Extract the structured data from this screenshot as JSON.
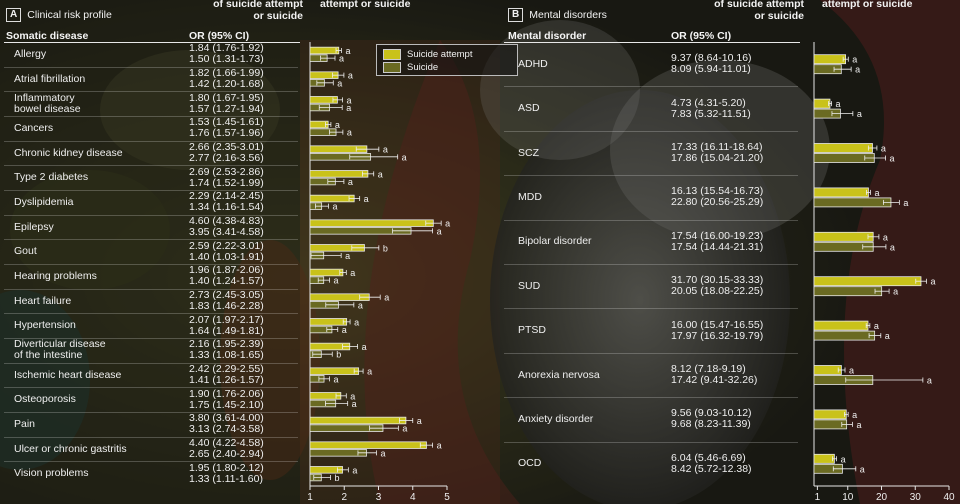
{
  "panelA": {
    "letter": "A",
    "title": "Clinical risk profile",
    "col_label": "Somatic disease",
    "col_or": "OR (95% CI)",
    "top_or_header": "of suicide attempt\nor suicide",
    "top_plot_header": "attempt or suicide"
  },
  "panelB": {
    "letter": "B",
    "title": "Mental disorders",
    "col_label": "Mental disorder",
    "col_or": "OR (95% CI)",
    "top_or_header": "of suicide attempt\nor suicide",
    "top_plot_header": "attempt or suicide"
  },
  "legend": {
    "attempt": "Suicide attempt",
    "suicide": "Suicide"
  },
  "colors": {
    "attempt": "#c9c21a",
    "suicide": "#6a6a22",
    "bar_edge": "#e8e8e8"
  },
  "chart_data": [
    {
      "type": "bar",
      "orientation": "horizontal",
      "categories": [
        "Allergy",
        "Atrial fibrillation",
        "Inflammatory\nbowel disease",
        "Cancers",
        "Chronic kidney disease",
        "Type 2 diabetes",
        "Dyslipidemia",
        "Epilepsy",
        "Gout",
        "Hearing problems",
        "Heart failure",
        "Hypertension",
        "Diverticular disease\nof the intestine",
        "Ischemic heart disease",
        "Osteoporosis",
        "Pain",
        "Ulcer or chronic gastritis",
        "Vision problems"
      ],
      "xlim": [
        1,
        5
      ],
      "xticks": [
        1,
        2,
        3,
        4,
        5
      ],
      "series": [
        {
          "name": "Suicide attempt",
          "values": [
            1.84,
            1.82,
            1.8,
            1.53,
            2.66,
            2.69,
            2.29,
            4.6,
            2.59,
            1.96,
            2.73,
            2.07,
            2.16,
            2.42,
            1.9,
            3.8,
            4.4,
            1.95
          ],
          "lo": [
            1.76,
            1.66,
            1.67,
            1.45,
            2.35,
            2.53,
            2.14,
            4.38,
            2.22,
            1.87,
            2.45,
            1.97,
            1.95,
            2.29,
            1.76,
            3.61,
            4.22,
            1.8
          ],
          "hi": [
            1.92,
            1.99,
            1.95,
            1.61,
            3.01,
            2.86,
            2.45,
            4.83,
            3.01,
            2.06,
            3.05,
            2.17,
            2.39,
            2.55,
            2.06,
            4.0,
            4.58,
            2.12
          ],
          "ci_text": [
            "1.84 (1.76-1.92)",
            "1.82 (1.66-1.99)",
            "1.80 (1.67-1.95)",
            "1.53 (1.45-1.61)",
            "2.66 (2.35-3.01)",
            "2.69 (2.53-2.86)",
            "2.29 (2.14-2.45)",
            "4.60 (4.38-4.83)",
            "2.59 (2.22-3.01)",
            "1.96 (1.87-2.06)",
            "2.73 (2.45-3.05)",
            "2.07 (1.97-2.17)",
            "2.16 (1.95-2.39)",
            "2.42 (2.29-2.55)",
            "1.90 (1.76-2.06)",
            "3.80 (3.61-4.00)",
            "4.40 (4.22-4.58)",
            "1.95 (1.80-2.12)"
          ],
          "sig": [
            "a",
            "a",
            "a",
            "a",
            "a",
            "a",
            "a",
            "a",
            "b",
            "a",
            "a",
            "a",
            "a",
            "a",
            "a",
            "a",
            "a",
            "a"
          ]
        },
        {
          "name": "Suicide",
          "values": [
            1.5,
            1.42,
            1.57,
            1.76,
            2.77,
            1.74,
            1.34,
            3.95,
            1.4,
            1.4,
            1.83,
            1.64,
            1.33,
            1.41,
            1.75,
            3.13,
            2.65,
            1.33
          ],
          "lo": [
            1.31,
            1.2,
            1.27,
            1.57,
            2.16,
            1.52,
            1.16,
            3.41,
            1.03,
            1.24,
            1.46,
            1.49,
            1.08,
            1.26,
            1.45,
            2.74,
            2.4,
            1.11
          ],
          "hi": [
            1.73,
            1.68,
            1.94,
            1.96,
            3.56,
            1.99,
            1.54,
            4.58,
            1.91,
            1.57,
            2.28,
            1.81,
            1.65,
            1.57,
            2.1,
            3.58,
            2.94,
            1.6
          ],
          "ci_text": [
            "1.50 (1.31-1.73)",
            "1.42 (1.20-1.68)",
            "1.57 (1.27-1.94)",
            "1.76 (1.57-1.96)",
            "2.77 (2.16-3.56)",
            "1.74 (1.52-1.99)",
            "1.34 (1.16-1.54)",
            "3.95 (3.41-4.58)",
            "1.40 (1.03-1.91)",
            "1.40 (1.24-1.57)",
            "1.83 (1.46-2.28)",
            "1.64 (1.49-1.81)",
            "1.33 (1.08-1.65)",
            "1.41 (1.26-1.57)",
            "1.75 (1.45-2.10)",
            "3.13 (2.74-3.58)",
            "2.65 (2.40-2.94)",
            "1.33 (1.11-1.60)"
          ],
          "sig": [
            "a",
            "a",
            "a",
            "a",
            "a",
            "a",
            "a",
            "a",
            "a",
            "a",
            "a",
            "a",
            "b",
            "a",
            "a",
            "a",
            "a",
            "b"
          ]
        }
      ]
    },
    {
      "type": "bar",
      "orientation": "horizontal",
      "categories": [
        "ADHD",
        "ASD",
        "SCZ",
        "MDD",
        "Bipolar disorder",
        "SUD",
        "PTSD",
        "Anorexia nervosa",
        "Anxiety disorder",
        "OCD"
      ],
      "xlim": [
        0,
        40
      ],
      "xticks": [
        1,
        10,
        20,
        30,
        40
      ],
      "series": [
        {
          "name": "Suicide attempt",
          "values": [
            9.37,
            4.73,
            17.33,
            16.13,
            17.54,
            31.7,
            16.0,
            8.12,
            9.56,
            6.04
          ],
          "lo": [
            8.64,
            4.31,
            16.11,
            15.54,
            16.0,
            30.15,
            15.47,
            7.18,
            9.03,
            5.46
          ],
          "hi": [
            10.16,
            5.2,
            18.64,
            16.73,
            19.23,
            33.33,
            16.55,
            9.19,
            10.12,
            6.69
          ],
          "ci_text": [
            "9.37 (8.64-10.16)",
            "4.73 (4.31-5.20)",
            "17.33 (16.11-18.64)",
            "16.13 (15.54-16.73)",
            "17.54 (16.00-19.23)",
            "31.70 (30.15-33.33)",
            "16.00 (15.47-16.55)",
            "8.12 (7.18-9.19)",
            "9.56 (9.03-10.12)",
            "6.04 (5.46-6.69)"
          ],
          "sig": [
            "a",
            "a",
            "a",
            "a",
            "a",
            "a",
            "a",
            "a",
            "a",
            "a"
          ]
        },
        {
          "name": "Suicide",
          "values": [
            8.09,
            7.83,
            17.86,
            22.8,
            17.54,
            20.05,
            17.97,
            17.42,
            9.68,
            8.42
          ],
          "lo": [
            5.94,
            5.32,
            15.04,
            20.56,
            14.44,
            18.08,
            16.32,
            9.41,
            8.23,
            5.72
          ],
          "hi": [
            11.01,
            11.51,
            21.2,
            25.29,
            21.31,
            22.25,
            19.79,
            32.26,
            11.39,
            12.38
          ],
          "ci_text": [
            "8.09 (5.94-11.01)",
            "7.83 (5.32-11.51)",
            "17.86 (15.04-21.20)",
            "22.80 (20.56-25.29)",
            "17.54 (14.44-21.31)",
            "20.05 (18.08-22.25)",
            "17.97 (16.32-19.79)",
            "17.42 (9.41-32.26)",
            "9.68 (8.23-11.39)",
            "8.42 (5.72-12.38)"
          ],
          "sig": [
            "a",
            "a",
            "a",
            "a",
            "a",
            "a",
            "a",
            "a",
            "a",
            "a"
          ]
        }
      ]
    }
  ]
}
